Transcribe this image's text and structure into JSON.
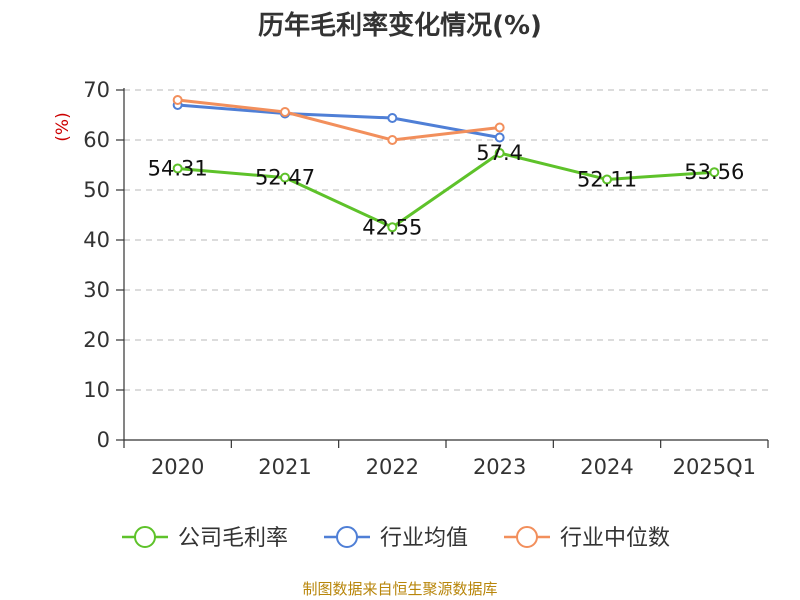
{
  "chart_data": {
    "type": "line",
    "title": "历年毛利率变化情况(%)",
    "ylabel": "(%)",
    "xlabel": "",
    "categories": [
      "2020",
      "2021",
      "2022",
      "2023",
      "2024",
      "2025Q1"
    ],
    "ylim": [
      0,
      70
    ],
    "yticks": [
      0,
      10,
      20,
      30,
      40,
      50,
      60,
      70
    ],
    "grid": true,
    "legend_position": "bottom",
    "series": [
      {
        "name": "公司毛利率",
        "color": "#5ec22a",
        "values": [
          54.31,
          52.47,
          42.55,
          57.4,
          52.11,
          53.56
        ],
        "labels": [
          "54.31",
          "52.47",
          "42.55",
          "57.4",
          "52.11",
          "53.56"
        ]
      },
      {
        "name": "行业均值",
        "color": "#4f7fd6",
        "values": [
          67.0,
          65.3,
          64.4,
          60.5,
          null,
          null
        ]
      },
      {
        "name": "行业中位数",
        "color": "#f28f5c",
        "values": [
          68.0,
          65.6,
          60.0,
          62.5,
          null,
          null
        ]
      }
    ]
  },
  "source": "制图数据来自恒生聚源数据库"
}
